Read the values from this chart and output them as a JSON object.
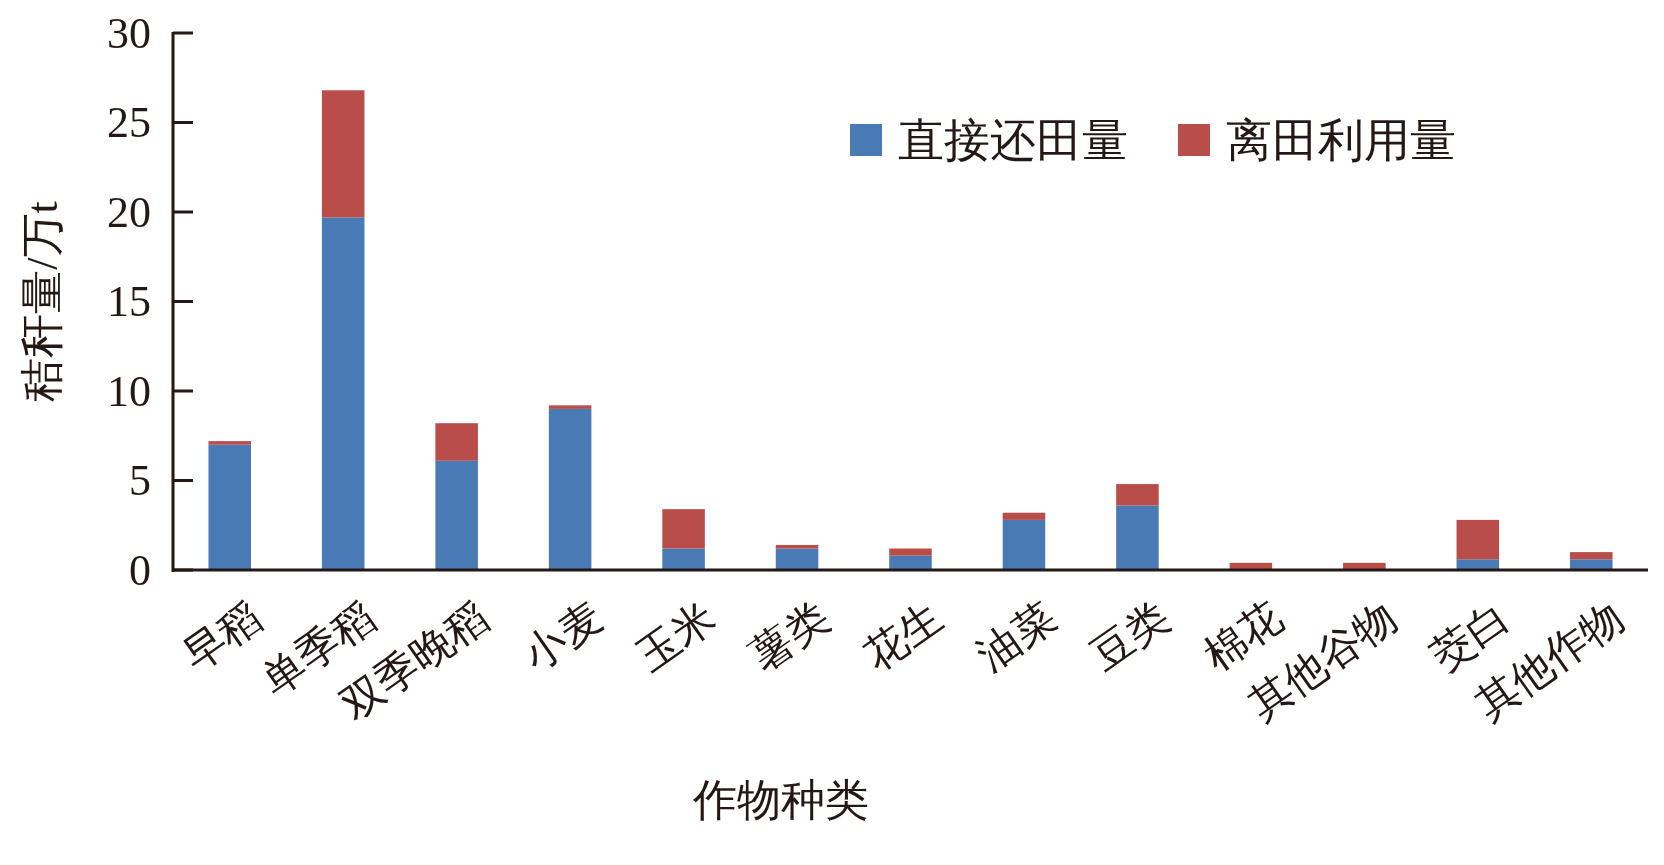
{
  "chart_data": {
    "type": "bar",
    "stacked": true,
    "xlabel": "作物种类",
    "ylabel": "秸秆量/万t",
    "categories": [
      "早稻",
      "单季稻",
      "双季晚稻",
      "小麦",
      "玉米",
      "薯类",
      "花生",
      "油菜",
      "豆类",
      "棉花",
      "其他谷物",
      "茭白",
      "其他作物"
    ],
    "series": [
      {
        "name": "直接还田量",
        "color": "#4a7ab3",
        "values": [
          7.0,
          19.7,
          6.1,
          9.0,
          1.2,
          1.2,
          0.8,
          2.8,
          3.6,
          0,
          0,
          0.6,
          0.6
        ]
      },
      {
        "name": "离田利用量",
        "color": "#b84d4a",
        "values": [
          0.2,
          7.1,
          2.1,
          0.2,
          2.2,
          0.2,
          0.4,
          0.4,
          1.2,
          0.4,
          0.4,
          2.2,
          0.4
        ]
      }
    ],
    "ylim": [
      0,
      30
    ],
    "yticks": [
      0,
      5,
      10,
      15,
      20,
      25,
      30
    ],
    "legend": "top right",
    "grid": false
  }
}
